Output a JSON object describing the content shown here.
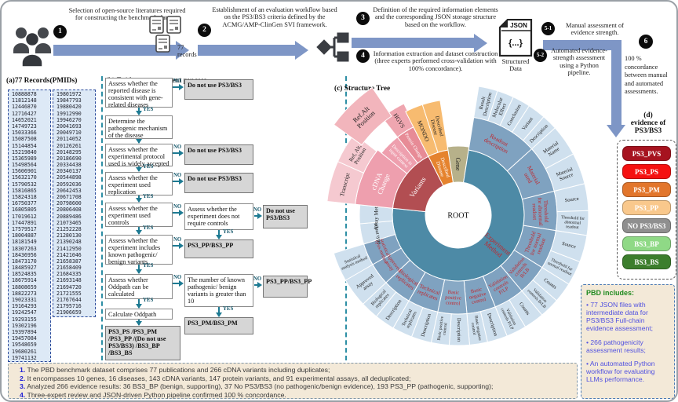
{
  "workflow": {
    "step1": {
      "num": "1",
      "text": "Selection of open-source literatures required for constructing the benchmark dataset."
    },
    "step2": {
      "num": "2",
      "text": "Establishment of an evaluation workflow based on the PS3/BS3 criteria defined by the ACMG/AMP-ClinGen SVI framework."
    },
    "step3": {
      "num": "3",
      "text": "Definition of the required information elements and the corresponding JSON storage structure based on the workflow."
    },
    "step4": {
      "num": "4",
      "text": "Information extraction and dataset construction (three experts performed cross-validation with 100% concordance)."
    },
    "step51": {
      "num": "5-1",
      "text": "Manual assessment of evidence strength."
    },
    "step52": {
      "num": "5-2",
      "text": "Automated evidence-strength assessment using a Python pipeline."
    },
    "step6": {
      "num": "6",
      "text": "100 % concordance between manual and automated assessments."
    },
    "records": {
      "count": "77",
      "label": "records"
    },
    "json_icon": {
      "top": "JSON",
      "body": "{...}",
      "label": "Structured\nData"
    }
  },
  "panel_a": {
    "title": "(a)77 Records(PMIDs)",
    "col1": [
      "10888878",
      "11812148",
      "12446870",
      "12716427",
      "14652021",
      "14749723",
      "15033366",
      "15087508",
      "15144854",
      "15219840",
      "15365989",
      "15498564",
      "15606901",
      "15632170",
      "15790532",
      "15816865",
      "15824318",
      "16750377",
      "16805805",
      "17019612",
      "17447891",
      "17579517",
      "18004887",
      "18181549",
      "18307263",
      "18436956",
      "18473170",
      "18485927",
      "18524835",
      "18675914",
      "18808659",
      "18822273",
      "19023331",
      "19164293",
      "19242547",
      "19293155",
      "19302196",
      "19397894",
      "19457084",
      "19548659",
      "19680261",
      "19741132"
    ],
    "col2": [
      "19801972",
      "19847793",
      "19880420",
      "19912990",
      "19946270",
      "20041693",
      "20049710",
      "20114052",
      "20126261",
      "20148295",
      "20186690",
      "20334438",
      "20340137",
      "20544898",
      "20592036",
      "20642453",
      "20671708",
      "20798600",
      "20806408",
      "20889486",
      "21073465",
      "21252228",
      "21280130",
      "21390248",
      "21412950",
      "21421046",
      "21658387",
      "21658409",
      "21684335",
      "21693148",
      "21694720",
      "21721555",
      "21767644",
      "21795716",
      "21906659"
    ]
  },
  "panel_b": {
    "title": "(b) Evidence assessment process",
    "yes": "YES",
    "no": "NO",
    "boxes": {
      "q_disease": "Assess whether the reported disease is consistent with gene-related diseases",
      "do_not_use": "Do not use PS3/BS3",
      "q_mechanism": "Determine the pathogenic mechanism of the disease",
      "q_protocol": "Assess whether the experimental protocol used is widely accepted",
      "q_replication": "Assess whether the experiment used replication",
      "q_controls": "Assess whether the experiment used controls",
      "q_no_controls": "Assess whether the experiment does not require controls",
      "q_variants": "Assess whether the experiment includes known pathogenic/ benign variants",
      "r_pp": "PS3_PP/BS3_PP",
      "q_oddpath": "Assess whether Oddpath can be calculated",
      "q_number": "The number of known pathogenic/ benign variants is greater than 10",
      "r_pm": "PS3_PM/BS3_PM",
      "calc": "Calculate Oddpath",
      "final": "PS3_PS /PS3_PM /PS3_PP /(Do not use PS3/BS3) /BS3_BP /BS3_BS"
    }
  },
  "panel_c": {
    "title": "(c) Structure Tree",
    "root": "ROOT",
    "segments": [
      {
        "t": "Gene",
        "a0": 351,
        "a1": 369,
        "r0": 42,
        "r1": 88,
        "f": "#b7b18a",
        "c": "#1a1a1a",
        "m": "r",
        "fs": 8
      },
      {
        "t": "Experiment\nMethod",
        "a0": 9,
        "a1": 276,
        "r0": 42,
        "r1": 84,
        "f": "#4d8aa6",
        "c": "#c1272d",
        "m": "r",
        "fs": 8.5,
        "la": 130,
        "lr": 62
      },
      {
        "t": "Variants",
        "a0": 276,
        "a1": 333,
        "r0": 42,
        "r1": 84,
        "f": "#b24e52",
        "c": "#ffffff",
        "m": "t",
        "fs": 9
      },
      {
        "t": "Described\nDisease",
        "a0": 333,
        "a1": 351,
        "r0": 42,
        "r1": 84,
        "f": "#e5832e",
        "c": "#ffffff",
        "m": "r",
        "fs": 6.5
      },
      {
        "t": "Readout\ndescription",
        "a0": 9,
        "a1": 48,
        "r0": 84,
        "r1": 126,
        "f": "#7fa2c0",
        "c": "#c1272d",
        "m": "t",
        "fs": 7.5
      },
      {
        "t": "Material\nused",
        "a0": 48,
        "a1": 76,
        "r0": 84,
        "r1": 126,
        "f": "#7fa2c0",
        "c": "#c1272d",
        "m": "t",
        "fs": 7.5
      },
      {
        "t": "Threshold\nfor abnormal\nreadout",
        "a0": 76,
        "a1": 99,
        "r0": 84,
        "r1": 126,
        "f": "#7fa2c0",
        "c": "#c1272d",
        "m": "t",
        "fs": 7
      },
      {
        "t": "Threshold\nfor normal\nreadout",
        "a0": 99,
        "a1": 122,
        "r0": 84,
        "r1": 126,
        "f": "#7fa2c0",
        "c": "#c1272d",
        "m": "t",
        "fs": 7
      },
      {
        "t": "Validation\ncontrols\nB/LB",
        "a0": 122,
        "a1": 140,
        "r0": 84,
        "r1": 126,
        "f": "#7fa2c0",
        "c": "#c1272d",
        "m": "t",
        "fs": 6.5
      },
      {
        "t": "Validation\ncontrols\nP/LP",
        "a0": 140,
        "a1": 158,
        "r0": 84,
        "r1": 126,
        "f": "#7fa2c0",
        "c": "#c1272d",
        "m": "t",
        "fs": 6.5
      },
      {
        "t": "Basic\nnegative\ncontrol",
        "a0": 158,
        "a1": 175,
        "r0": 84,
        "r1": 126,
        "f": "#7fa2c0",
        "c": "#c1272d",
        "m": "t",
        "fs": 6.5
      },
      {
        "t": "Basic\npositive\ncontrol",
        "a0": 175,
        "a1": 192,
        "r0": 84,
        "r1": 126,
        "f": "#88a9c5",
        "c": "#c1272d",
        "m": "t",
        "fs": 6.5
      },
      {
        "t": "Technical\nreplicates",
        "a0": 192,
        "a1": 210,
        "r0": 84,
        "r1": 126,
        "f": "#7fa2c0",
        "c": "#c1272d",
        "m": "t",
        "fs": 7
      },
      {
        "t": "Biological\nreplicates",
        "a0": 210,
        "a1": 227,
        "r0": 84,
        "r1": 126,
        "f": "#7fa2c0",
        "c": "#c1272d",
        "m": "t",
        "fs": 7
      },
      {
        "t": "Approved\nassay",
        "a0": 227,
        "a1": 240,
        "r0": 84,
        "r1": 126,
        "f": "#7fa2c0",
        "c": "#c1272d",
        "m": "t",
        "fs": 6.5
      },
      {
        "t": "Statistical\nanalysis method",
        "a0": 240,
        "a1": 253,
        "r0": 84,
        "r1": 126,
        "f": "#7fa2c0",
        "c": "#c1272d",
        "m": "t",
        "fs": 6
      },
      {
        "t": "Readout type",
        "a0": 253,
        "a1": 265,
        "r0": 84,
        "r1": 126,
        "f": "#cfe0ee",
        "c": "#1a1a1a",
        "m": "t",
        "fs": 6.5
      },
      {
        "t": "Assay Method",
        "a0": 265,
        "a1": 276,
        "r0": 84,
        "r1": 126,
        "f": "#cfe0ee",
        "c": "#1a1a1a",
        "m": "t",
        "fs": 7
      },
      {
        "t": "Result\nDescription",
        "a0": 9,
        "a1": 17.5,
        "r0": 126,
        "r1": 166,
        "f": "#cfe0ee",
        "c": "#1a1a1a",
        "m": "r",
        "fs": 6.5
      },
      {
        "t": "Molecular\nEffect",
        "a0": 17.5,
        "a1": 25,
        "r0": 126,
        "r1": 166,
        "f": "#cfe0ee",
        "c": "#1a1a1a",
        "m": "r",
        "fs": 6.5
      },
      {
        "t": "Conclusion",
        "a0": 25,
        "a1": 33,
        "r0": 126,
        "r1": 166,
        "f": "#cfe0ee",
        "c": "#1a1a1a",
        "m": "r",
        "fs": 6.5
      },
      {
        "t": "Variant",
        "a0": 33,
        "a1": 41,
        "r0": 126,
        "r1": 166,
        "f": "#cfe0ee",
        "c": "#1a1a1a",
        "m": "r",
        "fs": 6.5
      },
      {
        "t": "Description",
        "a0": 41,
        "a1": 48,
        "r0": 126,
        "r1": 166,
        "f": "#cfe0ee",
        "c": "#1a1a1a",
        "m": "r",
        "fs": 6.5
      },
      {
        "t": "Material\nName",
        "a0": 48,
        "a1": 62,
        "r0": 126,
        "r1": 166,
        "f": "#cfe0ee",
        "c": "#1a1a1a",
        "m": "r",
        "fs": 6.5
      },
      {
        "t": "Material\nSource",
        "a0": 62,
        "a1": 76,
        "r0": 126,
        "r1": 166,
        "f": "#cfe0ee",
        "c": "#1a1a1a",
        "m": "r",
        "fs": 6.5
      },
      {
        "t": "Source",
        "a0": 76,
        "a1": 88,
        "r0": 126,
        "r1": 166,
        "f": "#cfe0ee",
        "c": "#1a1a1a",
        "m": "r",
        "fs": 6.5
      },
      {
        "t": "Threshold for\nabnormal\nreadout",
        "a0": 88,
        "a1": 99,
        "r0": 126,
        "r1": 166,
        "f": "#cfe0ee",
        "c": "#1a1a1a",
        "m": "r",
        "fs": 5.5
      },
      {
        "t": "Source",
        "a0": 99,
        "a1": 111,
        "r0": 126,
        "r1": 166,
        "f": "#cfe0ee",
        "c": "#1a1a1a",
        "m": "r",
        "fs": 6.5
      },
      {
        "t": "Threshold for\nnormal readout",
        "a0": 111,
        "a1": 122,
        "r0": 126,
        "r1": 166,
        "f": "#cfe0ee",
        "c": "#1a1a1a",
        "m": "r",
        "fs": 5.5
      },
      {
        "t": "Counts",
        "a0": 122,
        "a1": 131,
        "r0": 126,
        "r1": 166,
        "f": "#cfe0ee",
        "c": "#1a1a1a",
        "m": "r",
        "fs": 6.5
      },
      {
        "t": "Validation\ncontrols B/LB",
        "a0": 131,
        "a1": 140,
        "r0": 126,
        "r1": 166,
        "f": "#cfe0ee",
        "c": "#1a1a1a",
        "m": "r",
        "fs": 5.5
      },
      {
        "t": "Counts",
        "a0": 140,
        "a1": 149,
        "r0": 126,
        "r1": 166,
        "f": "#cfe0ee",
        "c": "#1a1a1a",
        "m": "r",
        "fs": 6.5
      },
      {
        "t": "Validation\ncontrols P/LP",
        "a0": 149,
        "a1": 158,
        "r0": 126,
        "r1": 166,
        "f": "#cfe0ee",
        "c": "#1a1a1a",
        "m": "r",
        "fs": 5.5
      },
      {
        "t": "Description",
        "a0": 158,
        "a1": 167,
        "r0": 126,
        "r1": 166,
        "f": "#cfe0ee",
        "c": "#1a1a1a",
        "m": "r",
        "fs": 6.5
      },
      {
        "t": "Basic negative\ncontrol",
        "a0": 167,
        "a1": 175,
        "r0": 126,
        "r1": 166,
        "f": "#cfe0ee",
        "c": "#1a1a1a",
        "m": "r",
        "fs": 5.5
      },
      {
        "t": "Description",
        "a0": 175,
        "a1": 184,
        "r0": 126,
        "r1": 166,
        "f": "#cfe0ee",
        "c": "#1a1a1a",
        "m": "r",
        "fs": 6.5
      },
      {
        "t": "Basic positive\ncontrol",
        "a0": 184,
        "a1": 192,
        "r0": 126,
        "r1": 166,
        "f": "#cfe0ee",
        "c": "#1a1a1a",
        "m": "r",
        "fs": 5.5
      },
      {
        "t": "Description",
        "a0": 192,
        "a1": 201,
        "r0": 126,
        "r1": 166,
        "f": "#cfe0ee",
        "c": "#1a1a1a",
        "m": "r",
        "fs": 6.5
      },
      {
        "t": "Technical\nreplicates",
        "a0": 201,
        "a1": 210,
        "r0": 126,
        "r1": 166,
        "f": "#cfe0ee",
        "c": "#1a1a1a",
        "m": "r",
        "fs": 6
      },
      {
        "t": "Description",
        "a0": 210,
        "a1": 219,
        "r0": 126,
        "r1": 166,
        "f": "#cfe0ee",
        "c": "#1a1a1a",
        "m": "r",
        "fs": 6.5
      },
      {
        "t": "Biological\nreplicates",
        "a0": 219,
        "a1": 227,
        "r0": 126,
        "r1": 166,
        "f": "#cfe0ee",
        "c": "#1a1a1a",
        "m": "r",
        "fs": 6
      },
      {
        "t": "Approved\nassay",
        "a0": 227,
        "a1": 240,
        "r0": 126,
        "r1": 166,
        "f": "#cfe0ee",
        "c": "#1a1a1a",
        "m": "r",
        "fs": 6.5
      },
      {
        "t": "Statistical\nanalysis method",
        "a0": 240,
        "a1": 253,
        "r0": 126,
        "r1": 166,
        "f": "#cfe0ee",
        "c": "#1a1a1a",
        "m": "r",
        "fs": 5.5
      },
      {
        "t": "cDNA\nChange",
        "a0": 276,
        "a1": 309,
        "r0": 84,
        "r1": 132,
        "f": "#ee9fae",
        "c": "#ffffff",
        "m": "t",
        "fs": 9
      },
      {
        "t": "Description in\ninput context",
        "a0": 309,
        "a1": 322,
        "r0": 84,
        "r1": 126,
        "f": "#ee9fae",
        "c": "#ffffff",
        "m": "r",
        "fs": 6
      },
      {
        "t": "Protein Change",
        "a0": 322,
        "a1": 333,
        "r0": 84,
        "r1": 126,
        "f": "#e78b96",
        "c": "#ffffff",
        "m": "r",
        "fs": 6
      },
      {
        "t": "Transcript",
        "a0": 276,
        "a1": 294,
        "r0": 132,
        "r1": 168,
        "f": "#f5c9d0",
        "c": "#222222",
        "m": "t",
        "fs": 7.5
      },
      {
        "t": "Ref, Alt,\nPosition",
        "a0": 294,
        "a1": 308,
        "r0": 132,
        "r1": 168,
        "f": "#f5c9d0",
        "c": "#222222",
        "m": "t",
        "fs": 7
      },
      {
        "t": "HGVS",
        "a0": 322,
        "a1": 334,
        "r0": 126,
        "r1": 158,
        "f": "#efa6b0",
        "c": "#222222",
        "m": "r",
        "fs": 7.5
      },
      {
        "t": "MONDO",
        "a0": 333,
        "a1": 342,
        "r0": 84,
        "r1": 148,
        "f": "#f7bb70",
        "c": "#222222",
        "m": "r",
        "fs": 7.5
      },
      {
        "t": "Described\nDisease",
        "a0": 342,
        "a1": 351,
        "r0": 84,
        "r1": 148,
        "f": "#f7bb70",
        "c": "#222222",
        "m": "r",
        "fs": 6.5
      },
      {
        "t": "Ref.Alt\nPosition",
        "a0": 306,
        "a1": 326,
        "r0": 152,
        "r1": 196,
        "f": "#f2b5bc",
        "c": "#222222",
        "m": "t",
        "fs": 8.5
      }
    ]
  },
  "panel_d": {
    "title": "(d)\nevidence of\nPS3/BS3",
    "badges": [
      {
        "label": "PS3_PVS",
        "color": "#a6131f",
        "text_color": "#ffffff"
      },
      {
        "label": "PS3_PS",
        "color": "#f51111",
        "text_color": "#ffffff"
      },
      {
        "label": "PS3_PM",
        "color": "#e2762c",
        "text_color": "#ffffff"
      },
      {
        "label": "PS3_PP",
        "color": "#f9c88c",
        "text_color": "#ffffff"
      },
      {
        "label": "NO PS3/BS3",
        "color": "#8f8f8f",
        "text_color": "#ffffff"
      },
      {
        "label": "BS3_BP",
        "color": "#8fd986",
        "text_color": "#ffffff"
      },
      {
        "label": "BS3_BS",
        "color": "#3c7e2d",
        "text_color": "#ffffff"
      }
    ]
  },
  "pbd_includes": {
    "title": "PBD includes:",
    "items": [
      "• 77 JSON files with intermediate data for PS3/BS3 Full-chain evidence assessment;",
      "• 266 pathogenicity assessment results;",
      "• An automated Python workflow for evaluating LLMs performance."
    ]
  },
  "notes": [
    {
      "num": "1.",
      "text": "The PBD benchmark dataset comprises 77 publications and 266 cDNA variants including duplicates;"
    },
    {
      "num": "2.",
      "text": "It encompasses 10 genes, 16 diseases, 143 cDNA variants, 147 protein variants, and 91 experimental assays, all deduplicated;"
    },
    {
      "num": "3.",
      "text": "Analyzed 266 evidence results: 36 BS3_BP (benign, supporting), 37 No PS3/BS3 (no pathogenic/benign evidence), 193 PS3_PP (pathogenic, supporting);"
    },
    {
      "num": "4.",
      "text": "Three-expert review and JSON-driven Python pipeline confirmed 100 % concordance."
    }
  ]
}
